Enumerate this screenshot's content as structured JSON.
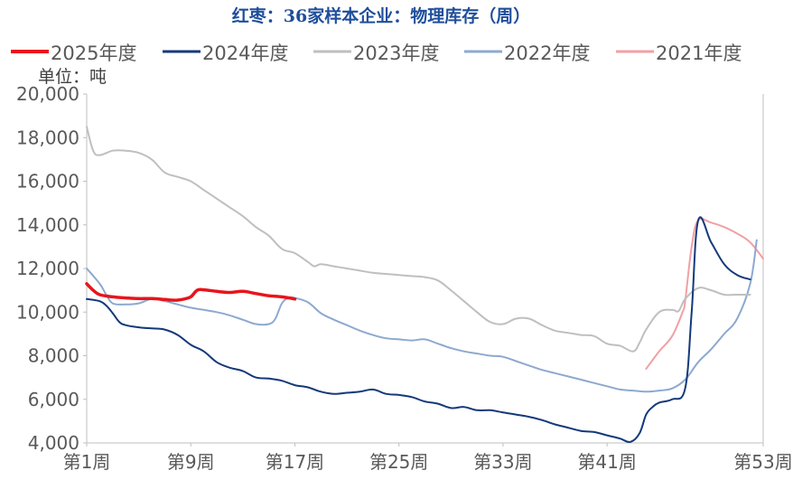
{
  "chart_data": {
    "type": "line",
    "title": "红枣：36家样本企业：物理库存（周）",
    "unit_label": "单位：吨",
    "ylim": [
      4000,
      20000
    ],
    "y_ticks": [
      "4,000",
      "6,000",
      "8,000",
      "10,000",
      "12,000",
      "14,000",
      "16,000",
      "18,000",
      "20,000"
    ],
    "y_tick_values": [
      4000,
      6000,
      8000,
      10000,
      12000,
      14000,
      16000,
      18000,
      20000
    ],
    "xlim": [
      1,
      53
    ],
    "x_ticks": [
      "第1周",
      "第9周",
      "第17周",
      "第25周",
      "第33周",
      "第41周",
      "第53周"
    ],
    "x_tick_values": [
      1,
      9,
      17,
      25,
      33,
      41,
      53
    ],
    "grid": false,
    "legend_position": "top",
    "series": [
      {
        "name": "2025年度",
        "color": "#e8141b",
        "width": 3.5,
        "points": [
          [
            1,
            11300
          ],
          [
            1.5,
            11000
          ],
          [
            2,
            10800
          ],
          [
            3,
            10700
          ],
          [
            4,
            10650
          ],
          [
            5,
            10620
          ],
          [
            6,
            10620
          ],
          [
            7,
            10580
          ],
          [
            7.5,
            10550
          ],
          [
            8,
            10550
          ],
          [
            8.5,
            10600
          ],
          [
            9,
            10700
          ],
          [
            9.5,
            11000
          ],
          [
            10,
            11020
          ],
          [
            11,
            10950
          ],
          [
            12,
            10900
          ],
          [
            13,
            10950
          ],
          [
            14,
            10850
          ],
          [
            15,
            10750
          ],
          [
            16,
            10700
          ],
          [
            17,
            10600
          ]
        ]
      },
      {
        "name": "2024年度",
        "color": "#14397a",
        "width": 2,
        "points": [
          [
            1,
            10600
          ],
          [
            2,
            10500
          ],
          [
            2.5,
            10300
          ],
          [
            3,
            9950
          ],
          [
            3.5,
            9550
          ],
          [
            4,
            9400
          ],
          [
            5,
            9300
          ],
          [
            6,
            9250
          ],
          [
            7,
            9200
          ],
          [
            8,
            8950
          ],
          [
            9,
            8500
          ],
          [
            10,
            8200
          ],
          [
            11,
            7700
          ],
          [
            12,
            7450
          ],
          [
            13,
            7300
          ],
          [
            14,
            7000
          ],
          [
            15,
            6950
          ],
          [
            16,
            6850
          ],
          [
            17,
            6650
          ],
          [
            18,
            6550
          ],
          [
            19,
            6350
          ],
          [
            20,
            6250
          ],
          [
            21,
            6300
          ],
          [
            22,
            6350
          ],
          [
            23,
            6450
          ],
          [
            24,
            6250
          ],
          [
            25,
            6200
          ],
          [
            26,
            6100
          ],
          [
            27,
            5900
          ],
          [
            28,
            5800
          ],
          [
            29,
            5600
          ],
          [
            30,
            5650
          ],
          [
            31,
            5500
          ],
          [
            32,
            5500
          ],
          [
            33,
            5400
          ],
          [
            34,
            5300
          ],
          [
            35,
            5200
          ],
          [
            36,
            5050
          ],
          [
            37,
            4850
          ],
          [
            38,
            4700
          ],
          [
            39,
            4550
          ],
          [
            40,
            4500
          ],
          [
            41,
            4350
          ],
          [
            42,
            4200
          ],
          [
            42.8,
            4050
          ],
          [
            43.5,
            4450
          ],
          [
            44,
            5300
          ],
          [
            44.5,
            5650
          ],
          [
            45,
            5850
          ],
          [
            46,
            6000
          ],
          [
            47,
            6500
          ],
          [
            47.5,
            10000
          ],
          [
            48,
            14200
          ],
          [
            49,
            13200
          ],
          [
            50,
            12200
          ],
          [
            51,
            11700
          ],
          [
            52,
            11500
          ]
        ]
      },
      {
        "name": "2023年度",
        "color": "#bfbfbf",
        "width": 2,
        "points": [
          [
            1,
            18500
          ],
          [
            1.5,
            17400
          ],
          [
            2,
            17200
          ],
          [
            3,
            17400
          ],
          [
            4,
            17400
          ],
          [
            5,
            17300
          ],
          [
            6,
            17000
          ],
          [
            7,
            16400
          ],
          [
            8,
            16200
          ],
          [
            9,
            16000
          ],
          [
            10,
            15600
          ],
          [
            11,
            15200
          ],
          [
            12,
            14800
          ],
          [
            13,
            14400
          ],
          [
            14,
            13900
          ],
          [
            15,
            13500
          ],
          [
            16,
            12900
          ],
          [
            17,
            12700
          ],
          [
            18,
            12300
          ],
          [
            18.5,
            12100
          ],
          [
            19,
            12200
          ],
          [
            20,
            12100
          ],
          [
            21,
            12000
          ],
          [
            22,
            11900
          ],
          [
            23,
            11800
          ],
          [
            24,
            11750
          ],
          [
            25,
            11700
          ],
          [
            26,
            11650
          ],
          [
            27,
            11600
          ],
          [
            28,
            11450
          ],
          [
            29,
            11000
          ],
          [
            30,
            10500
          ],
          [
            31,
            10000
          ],
          [
            32,
            9550
          ],
          [
            33,
            9450
          ],
          [
            34,
            9700
          ],
          [
            35,
            9700
          ],
          [
            36,
            9400
          ],
          [
            37,
            9150
          ],
          [
            38,
            9050
          ],
          [
            39,
            8950
          ],
          [
            40,
            8900
          ],
          [
            41,
            8550
          ],
          [
            42,
            8450
          ],
          [
            43,
            8200
          ],
          [
            43.5,
            8600
          ],
          [
            44,
            9200
          ],
          [
            45,
            10000
          ],
          [
            46,
            10100
          ],
          [
            46.5,
            10050
          ],
          [
            47,
            10600
          ],
          [
            48,
            11100
          ],
          [
            49,
            11000
          ],
          [
            50,
            10800
          ],
          [
            51,
            10800
          ],
          [
            52,
            10800
          ]
        ]
      },
      {
        "name": "2022年度",
        "color": "#8da9cf",
        "width": 2,
        "points": [
          [
            1,
            12000
          ],
          [
            2,
            11300
          ],
          [
            2.5,
            10800
          ],
          [
            3,
            10400
          ],
          [
            4,
            10350
          ],
          [
            5,
            10400
          ],
          [
            6,
            10600
          ],
          [
            7,
            10500
          ],
          [
            8,
            10350
          ],
          [
            9,
            10200
          ],
          [
            10,
            10100
          ],
          [
            11,
            10000
          ],
          [
            12,
            9850
          ],
          [
            13,
            9650
          ],
          [
            14,
            9450
          ],
          [
            15,
            9450
          ],
          [
            15.5,
            9700
          ],
          [
            16,
            10400
          ],
          [
            16.5,
            10650
          ],
          [
            17,
            10650
          ],
          [
            18,
            10450
          ],
          [
            19,
            9950
          ],
          [
            20,
            9650
          ],
          [
            21,
            9400
          ],
          [
            22,
            9150
          ],
          [
            23,
            8950
          ],
          [
            24,
            8800
          ],
          [
            25,
            8750
          ],
          [
            26,
            8700
          ],
          [
            27,
            8750
          ],
          [
            28,
            8550
          ],
          [
            29,
            8350
          ],
          [
            30,
            8200
          ],
          [
            31,
            8100
          ],
          [
            32,
            8000
          ],
          [
            33,
            7950
          ],
          [
            34,
            7750
          ],
          [
            35,
            7550
          ],
          [
            36,
            7350
          ],
          [
            37,
            7200
          ],
          [
            38,
            7050
          ],
          [
            39,
            6900
          ],
          [
            40,
            6750
          ],
          [
            41,
            6600
          ],
          [
            42,
            6450
          ],
          [
            43,
            6400
          ],
          [
            44,
            6350
          ],
          [
            45,
            6400
          ],
          [
            46,
            6500
          ],
          [
            47,
            6900
          ],
          [
            48,
            7700
          ],
          [
            49,
            8300
          ],
          [
            50,
            9000
          ],
          [
            51,
            9700
          ],
          [
            52,
            11300
          ],
          [
            52.5,
            13300
          ]
        ]
      },
      {
        "name": "2021年度",
        "color": "#f0a0a4",
        "width": 2,
        "points": [
          [
            44,
            7400
          ],
          [
            45,
            8200
          ],
          [
            46,
            8900
          ],
          [
            46.8,
            10000
          ],
          [
            47,
            10500
          ],
          [
            47.5,
            13000
          ],
          [
            48,
            14200
          ],
          [
            49,
            14100
          ],
          [
            50,
            13900
          ],
          [
            51,
            13600
          ],
          [
            52,
            13200
          ],
          [
            53,
            12450
          ]
        ]
      }
    ]
  }
}
